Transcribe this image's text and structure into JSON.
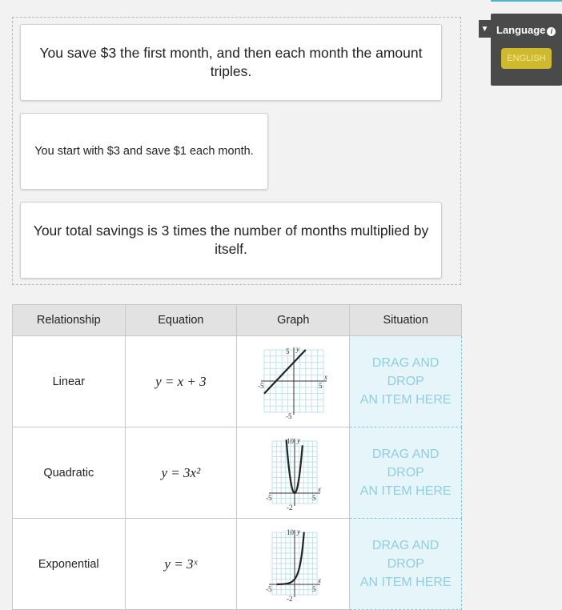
{
  "cards": [
    "You save $3 the first month, and then each month the amount triples.",
    "You start with $3 and save $1 each month.",
    "Your total savings is 3 times the number of months multiplied by itself."
  ],
  "table": {
    "headers": [
      "Relationship",
      "Equation",
      "Graph",
      "Situation"
    ],
    "rows": [
      {
        "relationship": "Linear",
        "equation": "y = x + 3",
        "graph": "linear",
        "drop": [
          "DRAG AND",
          "DROP",
          "AN ITEM HERE"
        ]
      },
      {
        "relationship": "Quadratic",
        "equation": "y = 3x²",
        "graph": "quadratic",
        "drop": [
          "DRAG AND",
          "DROP",
          "AN ITEM HERE"
        ]
      },
      {
        "relationship": "Exponential",
        "equation": "y = 3ˣ",
        "graph": "exponential",
        "drop": [
          "DRAG AND",
          "DROP",
          "AN ITEM HERE"
        ]
      }
    ],
    "graph_labels": {
      "linear": {
        "x": "x",
        "y": "y",
        "xmin": "-5",
        "xmax": "5",
        "ymin": "-5",
        "ymax": "5"
      },
      "quadratic": {
        "x": "x",
        "y": "y",
        "xmin": "-5",
        "xmax": "5",
        "ymin": "-2",
        "ymax": "10"
      },
      "exponential": {
        "x": "x",
        "y": "y",
        "xmin": "-5",
        "xmax": "5",
        "ymin": "-2",
        "ymax": "10"
      }
    }
  },
  "language": {
    "toggle_icon": "triangle-down",
    "label": "Language",
    "info_icon": "i",
    "button": "ENGLISH"
  },
  "colors": {
    "drop_bg": "#e6f5f9",
    "drop_border": "#7fc9d9",
    "english_button": "#cfb92c",
    "panel": "#4a4a4a"
  }
}
